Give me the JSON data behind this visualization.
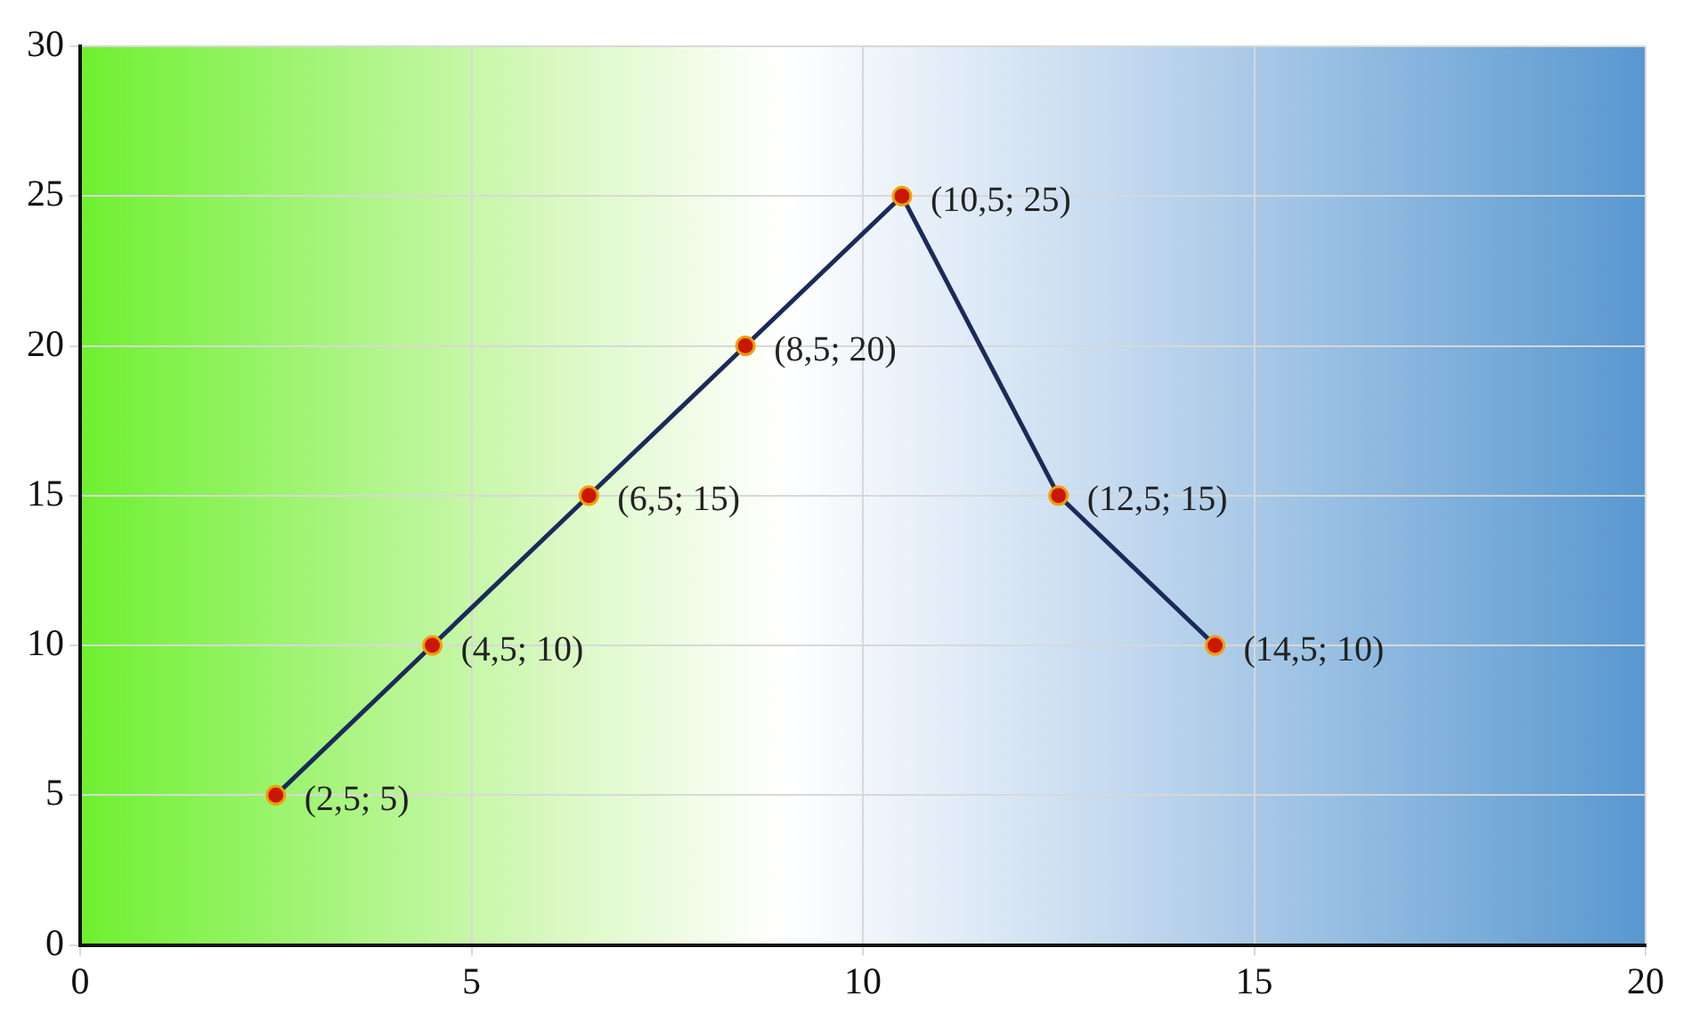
{
  "chart_data": {
    "type": "line",
    "x": [
      2.5,
      4.5,
      6.5,
      8.5,
      10.5,
      12.5,
      14.5
    ],
    "series": [
      {
        "color": "#1c2a5a",
        "values": [
          5,
          10,
          15,
          20,
          25,
          15,
          10
        ],
        "value_labels": [
          "(2,5; 5)",
          "(4,5; 10)",
          "(6,5; 15)",
          "(8,5; 20)",
          "(10,5; 25)",
          "(12,5; 15)",
          "(14,5; 10)"
        ]
      }
    ],
    "xlim": [
      0,
      20
    ],
    "xticks": [
      0,
      5,
      10,
      15,
      20
    ],
    "ylim": [
      0,
      30
    ],
    "yticks": [
      0,
      5,
      10,
      15,
      20,
      25,
      30
    ],
    "grid": true,
    "legend": false,
    "marker": "circle",
    "line_style": "solid"
  }
}
